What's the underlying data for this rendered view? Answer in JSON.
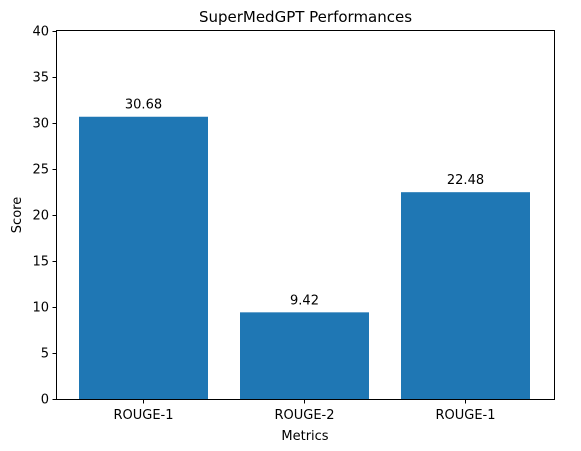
{
  "chart_data": {
    "type": "bar",
    "title": "SuperMedGPT Performances",
    "xlabel": "Metrics",
    "ylabel": "Score",
    "categories": [
      "ROUGE-1",
      "ROUGE-2",
      "ROUGE-1"
    ],
    "values": [
      30.68,
      9.42,
      22.48
    ],
    "value_labels": [
      "30.68",
      "9.42",
      "22.48"
    ],
    "ylim": [
      0,
      40
    ],
    "yticks": [
      0,
      5,
      10,
      15,
      20,
      25,
      30,
      35,
      40
    ],
    "bar_color": "#1f77b4",
    "grid": false,
    "legend": "none"
  }
}
